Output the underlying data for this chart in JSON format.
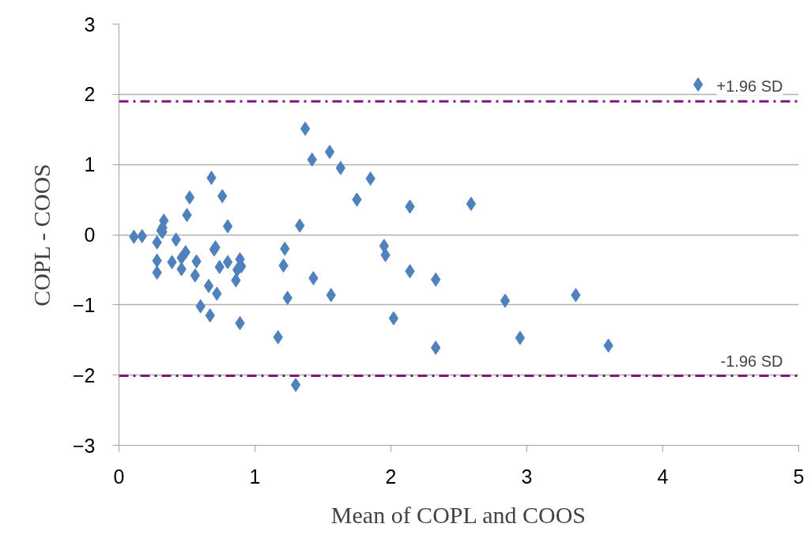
{
  "chart_data": {
    "type": "scatter",
    "xlabel": "Mean of COPL and COOS",
    "ylabel": "COPL - COOS",
    "xlim": [
      0,
      5
    ],
    "xticks": [
      0,
      1,
      2,
      3,
      4,
      5
    ],
    "ylim": [
      -3,
      3
    ],
    "yticks": [
      -3,
      -2,
      -1,
      0,
      1,
      2,
      3
    ],
    "grid": "y",
    "marker": "diamond",
    "series": [
      {
        "color": "#4f81bd",
        "x": [
          0.11,
          0.17,
          0.28,
          0.28,
          0.28,
          0.31,
          0.33,
          0.32,
          0.32,
          0.42,
          0.39,
          0.46,
          0.46,
          0.49,
          0.5,
          0.52,
          0.57,
          0.56,
          0.6,
          0.67,
          0.66,
          0.68,
          0.71,
          0.7,
          0.76,
          0.72,
          0.74,
          0.8,
          0.8,
          0.89,
          0.9,
          0.87,
          0.86,
          0.89,
          1.37,
          1.42,
          1.55,
          1.63,
          1.85,
          1.75,
          2.14,
          2.59,
          1.33,
          1.22,
          1.21,
          1.43,
          1.24,
          1.56,
          1.95,
          1.96,
          2.14,
          2.33,
          2.02,
          1.17,
          2.33,
          2.84,
          1.3,
          4.26,
          3.36,
          2.95,
          3.6
        ],
        "values": [
          -0.03,
          -0.02,
          -0.11,
          -0.37,
          -0.54,
          0.06,
          0.2,
          0.1,
          0.04,
          -0.07,
          -0.39,
          -0.49,
          -0.33,
          -0.25,
          0.28,
          0.53,
          -0.38,
          -0.58,
          -1.02,
          -1.15,
          -0.73,
          0.81,
          -0.18,
          -0.21,
          0.55,
          -0.84,
          -0.46,
          0.12,
          -0.39,
          -0.35,
          -0.45,
          -0.5,
          -0.65,
          -1.26,
          1.51,
          1.07,
          1.18,
          0.95,
          0.8,
          0.5,
          0.4,
          0.44,
          0.13,
          -0.2,
          -0.44,
          -0.62,
          -0.9,
          -0.86,
          -0.16,
          -0.29,
          -0.52,
          -0.64,
          -1.19,
          -1.46,
          -1.61,
          -0.94,
          -2.14,
          2.14,
          -0.86,
          -1.47,
          -1.58
        ]
      }
    ],
    "ref_lines": [
      {
        "axis": "y",
        "value": 1.9,
        "label": "+1.96 SD",
        "color": "#7b1a7b",
        "line_style": "dashdot"
      },
      {
        "axis": "y",
        "value": -2.01,
        "label": "-1.96 SD",
        "color": "#7b1a7b",
        "line_style": "dashdot"
      }
    ]
  }
}
